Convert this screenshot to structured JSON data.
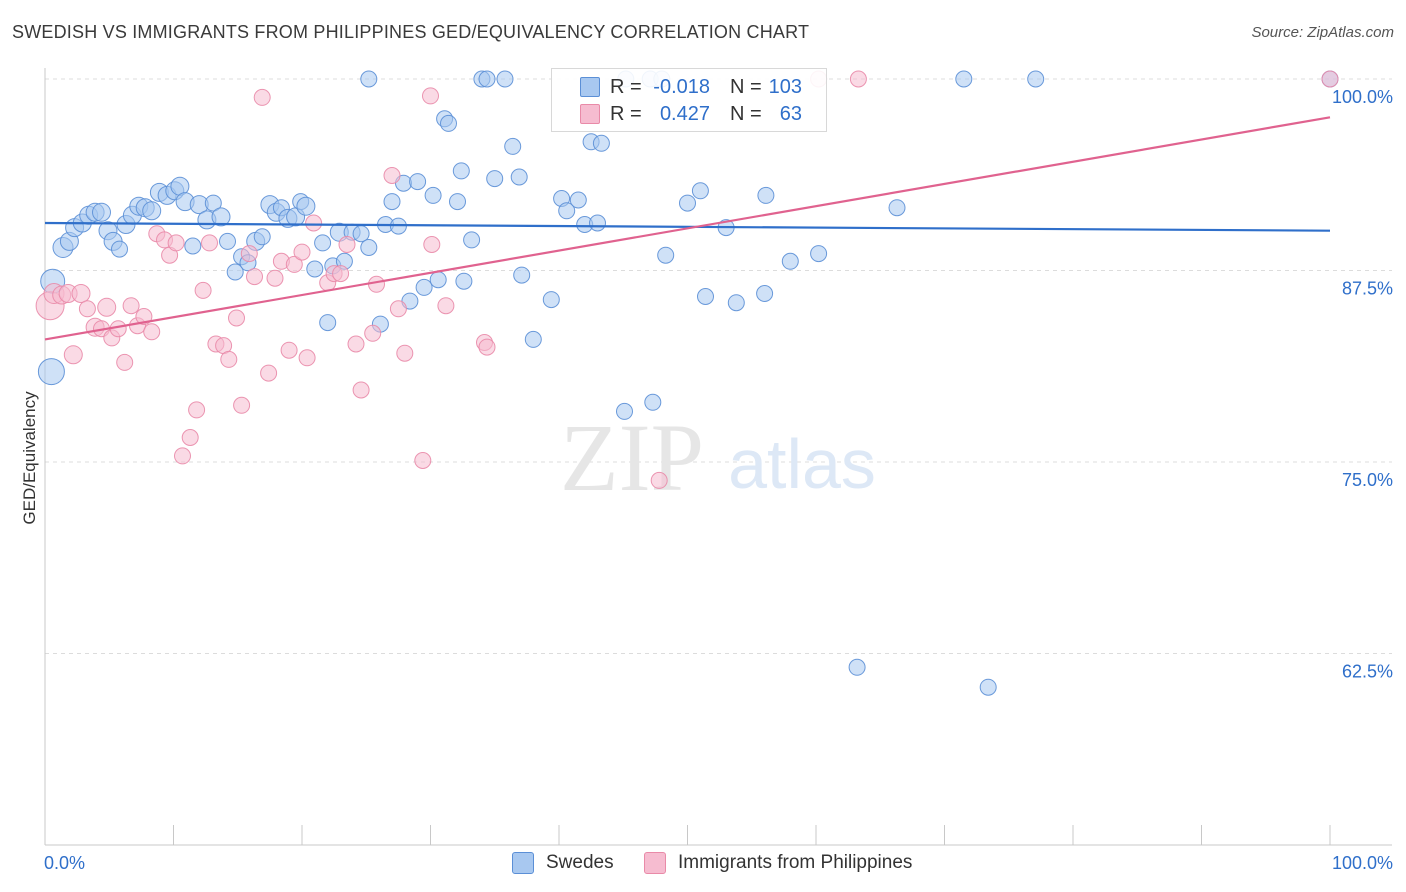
{
  "title": "SWEDISH VS IMMIGRANTS FROM PHILIPPINES GED/EQUIVALENCY CORRELATION CHART",
  "source": "Source: ZipAtlas.com",
  "watermark": {
    "zip": "ZIP",
    "atlas": "atlas"
  },
  "legend": {
    "series": [
      {
        "r_label": "R =",
        "r_value": "-0.018",
        "n_label": "N =",
        "n_value": "103"
      },
      {
        "r_label": "R =",
        "r_value": "0.427",
        "n_label": "N =",
        "n_value": "63"
      }
    ]
  },
  "colors": {
    "swedes_fill": "#a8c8f0",
    "swedes_stroke": "#5b8fd6",
    "swedes_line": "#2f6fca",
    "phil_fill": "#f6bcd0",
    "phil_stroke": "#e98aa8",
    "phil_line": "#e0628f",
    "value_text": "#2f6fca",
    "grid": "#dcdcdc"
  },
  "chart_data": {
    "type": "scatter",
    "title": "SWEDISH VS IMMIGRANTS FROM PHILIPPINES GED/EQUIVALENCY CORRELATION CHART",
    "xlabel": "",
    "ylabel": "GED/Equivalency",
    "xlim": [
      0,
      100
    ],
    "ylim": [
      50,
      101
    ],
    "x_tick_labels": [
      "0.0%",
      "100.0%"
    ],
    "y_ticks": [
      {
        "value": 100,
        "label": "100.0%"
      },
      {
        "value": 87.5,
        "label": "87.5%"
      },
      {
        "value": 75,
        "label": "75.0%"
      },
      {
        "value": 62.5,
        "label": "62.5%"
      }
    ],
    "grid": true,
    "legend_position": "bottom",
    "series": [
      {
        "name": "Swedes",
        "trend": {
          "x0": 0,
          "y0": 90.6,
          "x1": 100,
          "y1": 90.1
        },
        "points": [
          [
            0.6,
            86.8,
            12
          ],
          [
            0.5,
            80.9,
            13
          ],
          [
            1.4,
            89.0,
            10
          ],
          [
            1.9,
            89.4,
            9
          ],
          [
            2.3,
            90.3,
            9
          ],
          [
            2.9,
            90.6,
            9
          ],
          [
            3.4,
            91.1,
            9
          ],
          [
            3.9,
            91.3,
            9
          ],
          [
            4.4,
            91.3,
            9
          ],
          [
            4.9,
            90.1,
            9
          ],
          [
            5.3,
            89.4,
            9
          ],
          [
            5.8,
            88.9,
            8
          ],
          [
            6.3,
            90.5,
            9
          ],
          [
            6.8,
            91.1,
            9
          ],
          [
            7.3,
            91.7,
            9
          ],
          [
            7.8,
            91.6,
            9
          ],
          [
            8.3,
            91.4,
            9
          ],
          [
            8.9,
            92.6,
            9
          ],
          [
            9.5,
            92.4,
            9
          ],
          [
            10.1,
            92.7,
            9
          ],
          [
            10.5,
            93.0,
            9
          ],
          [
            10.9,
            92.0,
            9
          ],
          [
            11.5,
            89.1,
            8
          ],
          [
            12.0,
            91.8,
            9
          ],
          [
            12.6,
            90.8,
            9
          ],
          [
            13.1,
            91.9,
            8
          ],
          [
            13.7,
            91.0,
            9
          ],
          [
            14.2,
            89.4,
            8
          ],
          [
            14.8,
            87.4,
            8
          ],
          [
            15.3,
            88.4,
            8
          ],
          [
            15.8,
            88.0,
            8
          ],
          [
            16.4,
            89.4,
            9
          ],
          [
            16.9,
            89.7,
            8
          ],
          [
            17.5,
            91.8,
            9
          ],
          [
            18.0,
            91.3,
            9
          ],
          [
            18.4,
            91.6,
            8
          ],
          [
            18.9,
            90.9,
            9
          ],
          [
            19.5,
            91.0,
            9
          ],
          [
            19.9,
            92.0,
            8
          ],
          [
            20.3,
            91.7,
            9
          ],
          [
            21.0,
            87.6,
            8
          ],
          [
            21.6,
            89.3,
            8
          ],
          [
            22.0,
            84.1,
            8
          ],
          [
            22.4,
            87.8,
            8
          ],
          [
            22.9,
            90.0,
            9
          ],
          [
            23.3,
            88.1,
            8
          ],
          [
            23.9,
            90.0,
            8
          ],
          [
            24.6,
            89.9,
            8
          ],
          [
            25.2,
            89.0,
            8
          ],
          [
            25.2,
            100.0,
            8
          ],
          [
            26.1,
            84.0,
            8
          ],
          [
            26.5,
            90.5,
            8
          ],
          [
            27.0,
            92.0,
            8
          ],
          [
            27.5,
            90.4,
            8
          ],
          [
            27.9,
            93.2,
            8
          ],
          [
            28.4,
            85.5,
            8
          ],
          [
            29.0,
            93.3,
            8
          ],
          [
            29.5,
            86.4,
            8
          ],
          [
            30.2,
            92.4,
            8
          ],
          [
            30.6,
            86.9,
            8
          ],
          [
            31.1,
            97.4,
            8
          ],
          [
            31.4,
            97.1,
            8
          ],
          [
            32.1,
            92.0,
            8
          ],
          [
            32.4,
            94.0,
            8
          ],
          [
            32.6,
            86.8,
            8
          ],
          [
            33.2,
            89.5,
            8
          ],
          [
            34.0,
            100.0,
            8
          ],
          [
            34.4,
            100.0,
            8
          ],
          [
            35.0,
            93.5,
            8
          ],
          [
            35.8,
            100.0,
            8
          ],
          [
            36.4,
            95.6,
            8
          ],
          [
            36.9,
            93.6,
            8
          ],
          [
            38.0,
            83.0,
            8
          ],
          [
            39.4,
            85.6,
            8
          ],
          [
            40.2,
            92.2,
            8
          ],
          [
            40.6,
            91.4,
            8
          ],
          [
            41.5,
            92.1,
            8
          ],
          [
            42.0,
            90.5,
            8
          ],
          [
            42.5,
            95.9,
            8
          ],
          [
            43.3,
            95.8,
            8
          ],
          [
            45.1,
            78.3,
            8
          ],
          [
            45.2,
            100.0,
            8
          ],
          [
            47.1,
            100.0,
            8
          ],
          [
            47.3,
            78.9,
            8
          ],
          [
            48.0,
            100.0,
            8
          ],
          [
            48.3,
            88.5,
            8
          ],
          [
            50.0,
            91.9,
            8
          ],
          [
            51.0,
            92.7,
            8
          ],
          [
            51.4,
            85.8,
            8
          ],
          [
            53.0,
            90.3,
            8
          ],
          [
            53.8,
            85.4,
            8
          ],
          [
            56.0,
            86.0,
            8
          ],
          [
            56.1,
            92.4,
            8
          ],
          [
            58.0,
            88.1,
            8
          ],
          [
            60.2,
            88.6,
            8
          ],
          [
            63.2,
            61.6,
            8
          ],
          [
            66.3,
            91.6,
            8
          ],
          [
            71.5,
            100.0,
            8
          ],
          [
            73.4,
            60.3,
            8
          ],
          [
            77.1,
            100.0,
            8
          ],
          [
            100.0,
            100.0,
            8
          ],
          [
            43.0,
            90.6,
            8
          ],
          [
            37.1,
            87.2,
            8
          ]
        ]
      },
      {
        "name": "Immigrants from Philippines",
        "trend": {
          "x0": 0,
          "y0": 83.0,
          "x1": 100,
          "y1": 97.5
        },
        "points": [
          [
            0.4,
            85.2,
            14
          ],
          [
            0.7,
            86.0,
            10
          ],
          [
            1.3,
            85.9,
            9
          ],
          [
            1.8,
            86.0,
            9
          ],
          [
            2.2,
            82.0,
            9
          ],
          [
            2.8,
            86.0,
            9
          ],
          [
            3.3,
            85.0,
            8
          ],
          [
            3.9,
            83.8,
            9
          ],
          [
            4.4,
            83.7,
            8
          ],
          [
            4.8,
            85.1,
            9
          ],
          [
            5.2,
            83.1,
            8
          ],
          [
            5.7,
            83.7,
            8
          ],
          [
            6.2,
            81.5,
            8
          ],
          [
            6.7,
            85.2,
            8
          ],
          [
            7.2,
            83.9,
            8
          ],
          [
            7.7,
            84.5,
            8
          ],
          [
            8.3,
            83.5,
            8
          ],
          [
            8.7,
            89.9,
            8
          ],
          [
            9.3,
            89.5,
            8
          ],
          [
            9.7,
            88.5,
            8
          ],
          [
            10.2,
            89.3,
            8
          ],
          [
            10.7,
            75.4,
            8
          ],
          [
            11.3,
            76.6,
            8
          ],
          [
            11.8,
            78.4,
            8
          ],
          [
            12.3,
            86.2,
            8
          ],
          [
            12.8,
            89.3,
            8
          ],
          [
            13.3,
            82.7,
            8
          ],
          [
            13.9,
            82.6,
            8
          ],
          [
            14.3,
            81.7,
            8
          ],
          [
            14.9,
            84.4,
            8
          ],
          [
            15.3,
            78.7,
            8
          ],
          [
            15.9,
            88.6,
            8
          ],
          [
            16.3,
            87.1,
            8
          ],
          [
            16.9,
            98.8,
            8
          ],
          [
            17.4,
            80.8,
            8
          ],
          [
            17.9,
            87.0,
            8
          ],
          [
            18.4,
            88.1,
            8
          ],
          [
            19.0,
            82.3,
            8
          ],
          [
            19.4,
            87.9,
            8
          ],
          [
            20.0,
            88.7,
            8
          ],
          [
            20.4,
            81.8,
            8
          ],
          [
            20.9,
            90.6,
            8
          ],
          [
            22.0,
            86.7,
            8
          ],
          [
            22.5,
            87.3,
            8
          ],
          [
            23.0,
            87.3,
            8
          ],
          [
            23.5,
            89.2,
            8
          ],
          [
            24.2,
            82.7,
            8
          ],
          [
            24.6,
            79.7,
            8
          ],
          [
            25.5,
            83.4,
            8
          ],
          [
            25.8,
            86.6,
            8
          ],
          [
            27.0,
            93.7,
            8
          ],
          [
            27.5,
            85.0,
            8
          ],
          [
            28.0,
            82.1,
            8
          ],
          [
            29.4,
            75.1,
            8
          ],
          [
            30.0,
            98.9,
            8
          ],
          [
            30.1,
            89.2,
            8
          ],
          [
            31.2,
            85.2,
            8
          ],
          [
            34.2,
            82.8,
            8
          ],
          [
            34.4,
            82.5,
            8
          ],
          [
            47.8,
            73.8,
            8
          ],
          [
            60.2,
            100.0,
            8
          ],
          [
            63.3,
            100.0,
            8
          ],
          [
            100.0,
            100.0,
            8
          ]
        ]
      }
    ]
  }
}
